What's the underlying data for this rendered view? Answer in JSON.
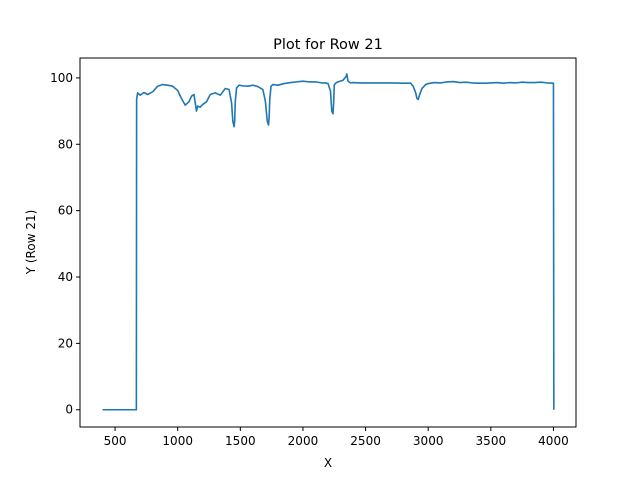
{
  "chart_data": {
    "type": "line",
    "title": "Plot for Row 21",
    "xlabel": "X",
    "ylabel": "Y (Row 21)",
    "xlim": [
      220,
      4180
    ],
    "ylim": [
      -5.2,
      106
    ],
    "xticks": [
      500,
      1000,
      1500,
      2000,
      2500,
      3000,
      3500,
      4000
    ],
    "yticks": [
      0,
      20,
      40,
      60,
      80,
      100
    ],
    "grid": false,
    "color": "#1f77b4",
    "series": [
      {
        "x": [
          400,
          670,
          672,
          680,
          700,
          730,
          760,
          800,
          840,
          880,
          920,
          960,
          1000,
          1030,
          1060,
          1090,
          1110,
          1130,
          1150,
          1160,
          1180,
          1200,
          1230,
          1260,
          1300,
          1340,
          1380,
          1410,
          1430,
          1440,
          1450,
          1455,
          1460,
          1470,
          1490,
          1520,
          1560,
          1600,
          1640,
          1680,
          1700,
          1715,
          1725,
          1730,
          1735,
          1745,
          1760,
          1800,
          1850,
          1900,
          1950,
          2000,
          2050,
          2100,
          2150,
          2180,
          2200,
          2220,
          2230,
          2240,
          2245,
          2250,
          2260,
          2280,
          2320,
          2345,
          2350,
          2360,
          2380,
          2400,
          2450,
          2500,
          2600,
          2700,
          2800,
          2860,
          2880,
          2900,
          2910,
          2920,
          2930,
          2950,
          2980,
          3000,
          3050,
          3100,
          3150,
          3200,
          3250,
          3300,
          3350,
          3400,
          3450,
          3500,
          3550,
          3600,
          3650,
          3700,
          3750,
          3800,
          3850,
          3900,
          3950,
          4000,
          4003
        ],
        "y": [
          0,
          0,
          93.5,
          95.5,
          94.8,
          95.6,
          95.0,
          95.8,
          97.5,
          98.0,
          97.8,
          97.5,
          96.2,
          93.8,
          91.8,
          92.8,
          94.5,
          95.0,
          90.0,
          91.5,
          91.2,
          92.0,
          92.8,
          95.0,
          95.5,
          94.8,
          96.8,
          96.5,
          92.5,
          87.0,
          85.3,
          87.0,
          93.0,
          97.0,
          97.8,
          97.6,
          97.5,
          97.8,
          97.4,
          96.5,
          93.0,
          87.0,
          85.8,
          88.0,
          93.5,
          97.5,
          98.0,
          97.8,
          98.3,
          98.6,
          98.8,
          99.0,
          98.8,
          98.8,
          98.5,
          98.5,
          98.3,
          96.0,
          90.0,
          89.2,
          92.5,
          97.8,
          98.4,
          98.8,
          99.3,
          100.5,
          101.2,
          99.0,
          98.5,
          98.6,
          98.5,
          98.5,
          98.5,
          98.5,
          98.4,
          98.4,
          97.5,
          95.5,
          93.8,
          93.5,
          94.8,
          96.8,
          98.0,
          98.3,
          98.6,
          98.5,
          98.8,
          98.9,
          98.6,
          98.7,
          98.5,
          98.4,
          98.4,
          98.5,
          98.6,
          98.4,
          98.6,
          98.5,
          98.7,
          98.6,
          98.6,
          98.7,
          98.5,
          98.4,
          0
        ]
      }
    ]
  }
}
